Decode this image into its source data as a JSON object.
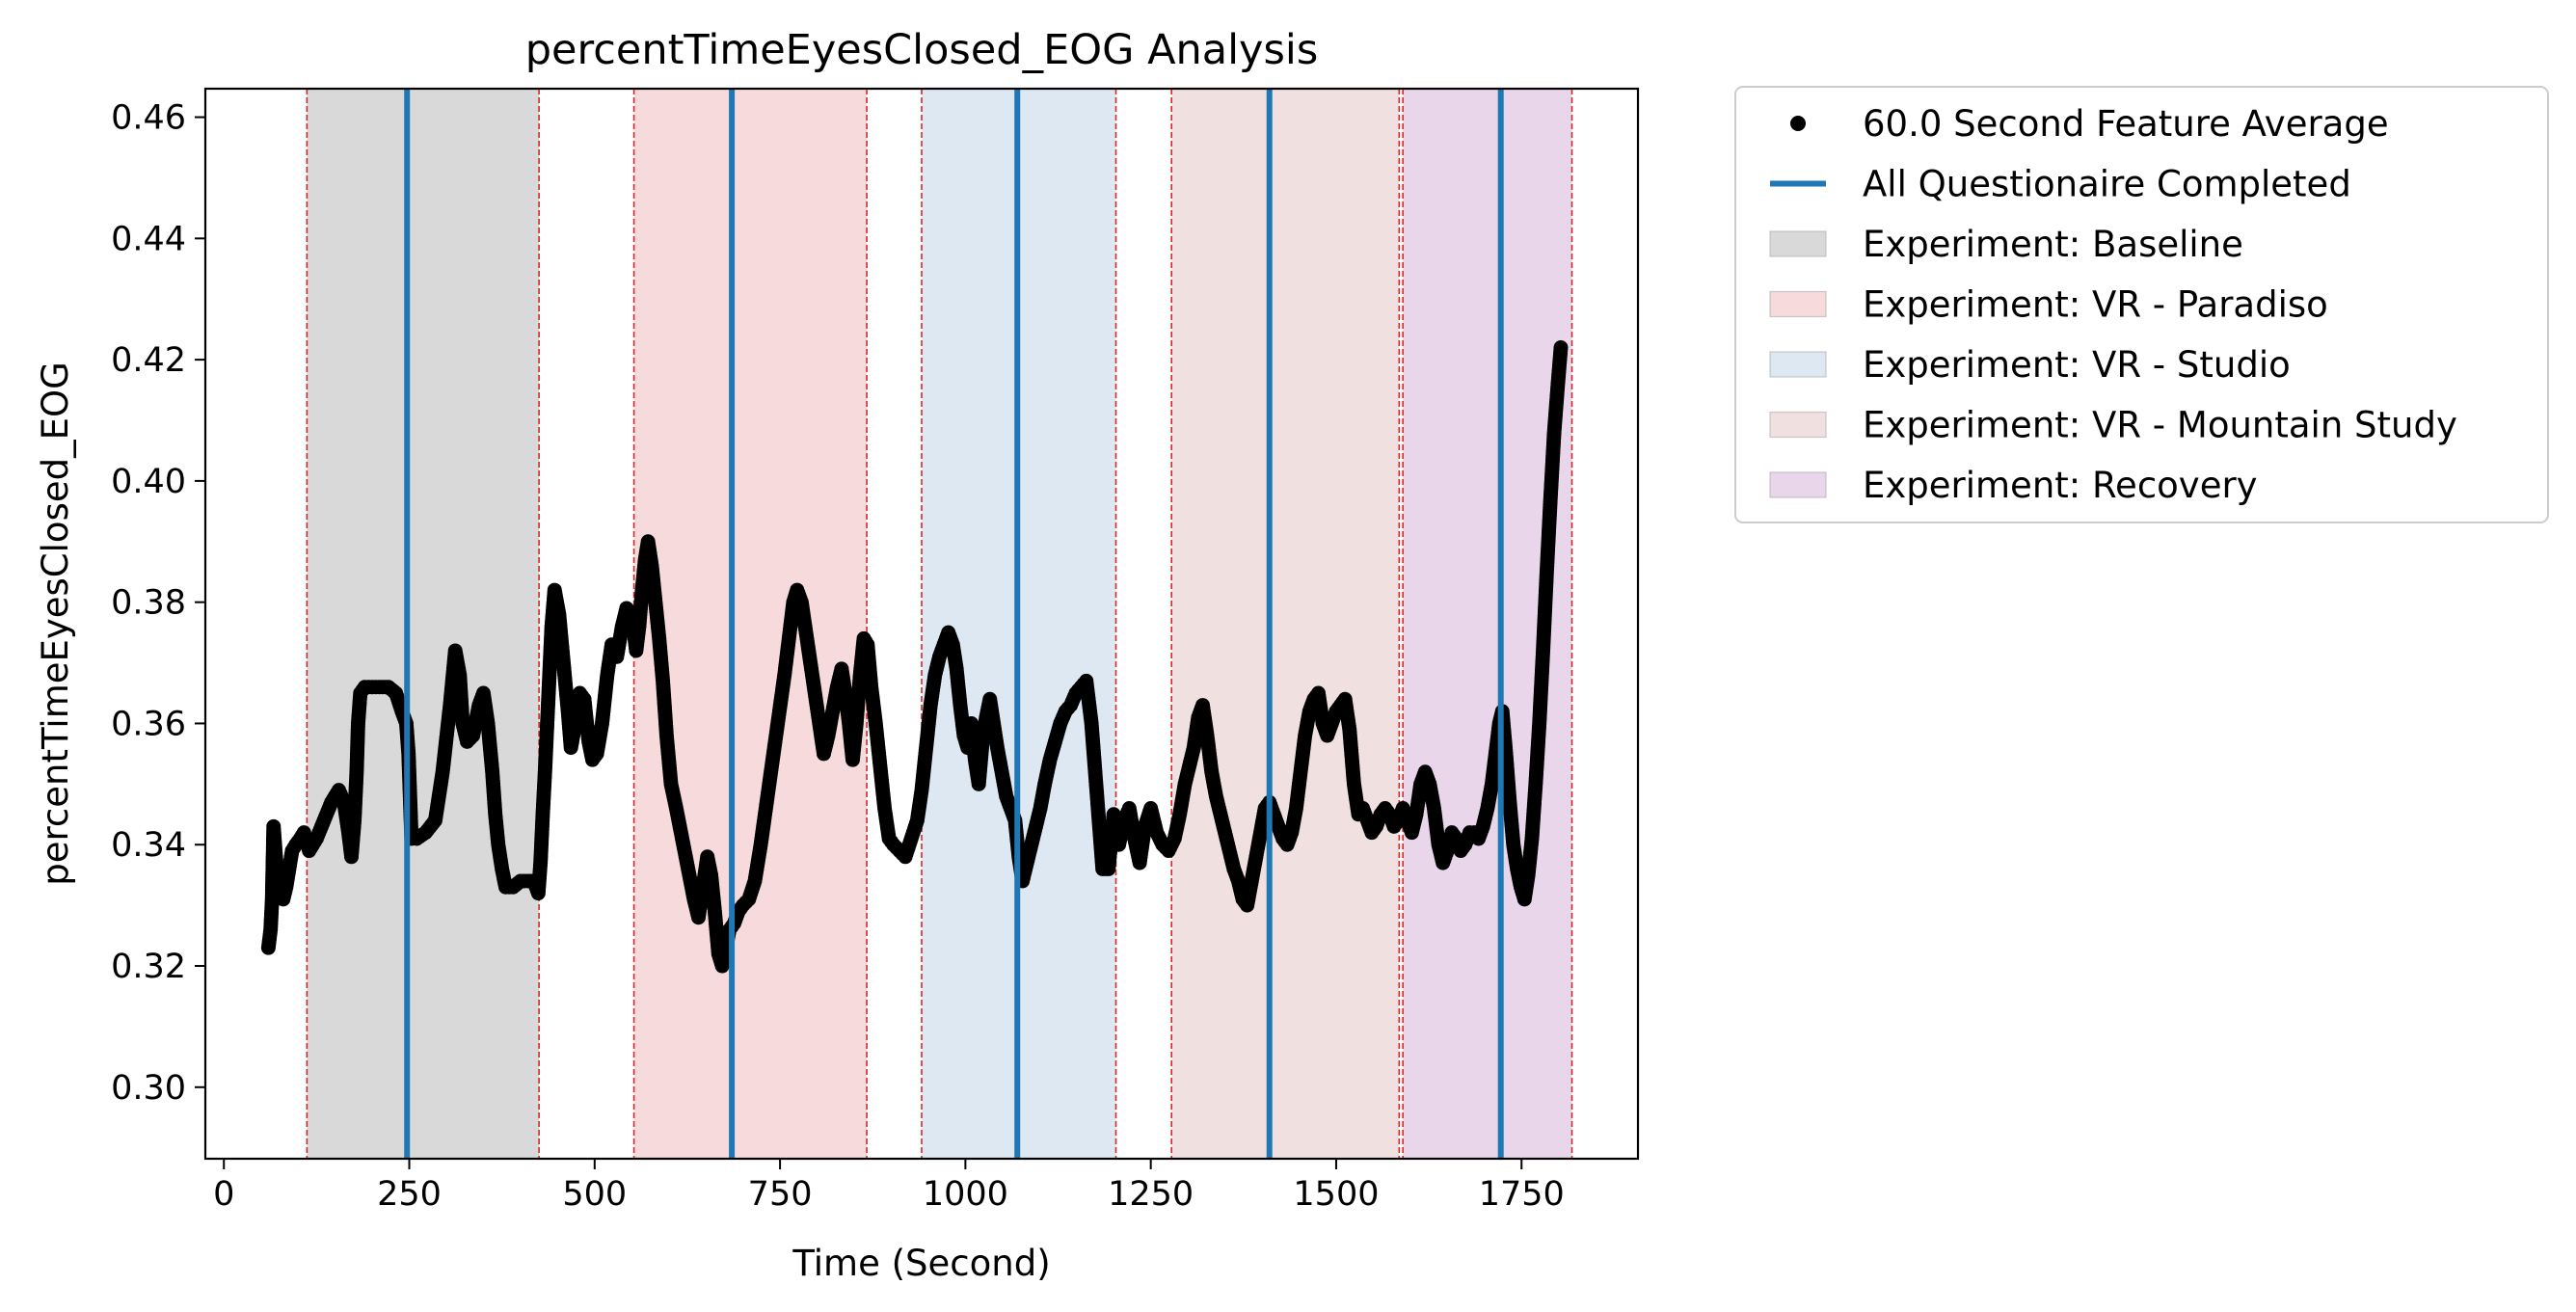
{
  "chart_data": {
    "type": "scatter",
    "title": "percentTimeEyesClosed_EOG Analysis",
    "xlabel": "Time (Second)",
    "ylabel": "percentTimeEyesClosed_EOG",
    "xlim": [
      -25,
      1907
    ],
    "ylim": [
      0.2882,
      0.4647
    ],
    "x_ticks": [
      0,
      250,
      500,
      750,
      1000,
      1250,
      1500,
      1750
    ],
    "y_ticks": [
      0.3,
      0.32,
      0.34,
      0.36,
      0.38,
      0.4,
      0.42,
      0.44,
      0.46
    ],
    "x_tick_labels": [
      "0",
      "250",
      "500",
      "750",
      "1000",
      "1250",
      "1500",
      "1750"
    ],
    "y_tick_labels": [
      "0.30",
      "0.32",
      "0.34",
      "0.36",
      "0.38",
      "0.40",
      "0.42",
      "0.44",
      "0.46"
    ],
    "grid": false,
    "legend_placement": "outside upper-right",
    "series_name": "60.0 Second Feature Average",
    "series_color": "#000000",
    "marker": "circle",
    "points": [
      [
        60,
        0.323
      ],
      [
        63,
        0.326
      ],
      [
        65,
        0.331
      ],
      [
        66,
        0.337
      ],
      [
        67,
        0.343
      ],
      [
        70,
        0.338
      ],
      [
        73,
        0.334
      ],
      [
        77,
        0.332
      ],
      [
        80,
        0.331
      ],
      [
        84,
        0.333
      ],
      [
        88,
        0.336
      ],
      [
        92,
        0.339
      ],
      [
        97,
        0.34
      ],
      [
        103,
        0.341
      ],
      [
        108,
        0.342
      ],
      [
        115,
        0.339
      ],
      [
        125,
        0.341
      ],
      [
        135,
        0.344
      ],
      [
        145,
        0.347
      ],
      [
        155,
        0.349
      ],
      [
        162,
        0.347
      ],
      [
        168,
        0.342
      ],
      [
        172,
        0.338
      ],
      [
        176,
        0.344
      ],
      [
        179,
        0.352
      ],
      [
        181,
        0.36
      ],
      [
        184,
        0.365
      ],
      [
        190,
        0.366
      ],
      [
        200,
        0.366
      ],
      [
        210,
        0.366
      ],
      [
        222,
        0.366
      ],
      [
        232,
        0.365
      ],
      [
        240,
        0.362
      ],
      [
        246,
        0.36
      ],
      [
        249,
        0.355
      ],
      [
        251,
        0.348
      ],
      [
        253,
        0.341
      ],
      [
        260,
        0.341
      ],
      [
        272,
        0.342
      ],
      [
        285,
        0.344
      ],
      [
        295,
        0.352
      ],
      [
        305,
        0.363
      ],
      [
        312,
        0.372
      ],
      [
        318,
        0.368
      ],
      [
        322,
        0.36
      ],
      [
        328,
        0.357
      ],
      [
        336,
        0.358
      ],
      [
        344,
        0.363
      ],
      [
        350,
        0.365
      ],
      [
        356,
        0.36
      ],
      [
        362,
        0.352
      ],
      [
        366,
        0.345
      ],
      [
        370,
        0.34
      ],
      [
        375,
        0.336
      ],
      [
        380,
        0.333
      ],
      [
        390,
        0.333
      ],
      [
        400,
        0.334
      ],
      [
        410,
        0.334
      ],
      [
        418,
        0.334
      ],
      [
        424,
        0.332
      ],
      [
        427,
        0.337
      ],
      [
        430,
        0.345
      ],
      [
        433,
        0.352
      ],
      [
        436,
        0.36
      ],
      [
        439,
        0.368
      ],
      [
        442,
        0.376
      ],
      [
        446,
        0.382
      ],
      [
        452,
        0.378
      ],
      [
        458,
        0.37
      ],
      [
        464,
        0.362
      ],
      [
        468,
        0.356
      ],
      [
        474,
        0.36
      ],
      [
        480,
        0.365
      ],
      [
        486,
        0.364
      ],
      [
        492,
        0.357
      ],
      [
        497,
        0.354
      ],
      [
        503,
        0.355
      ],
      [
        510,
        0.36
      ],
      [
        517,
        0.368
      ],
      [
        523,
        0.373
      ],
      [
        530,
        0.371
      ],
      [
        537,
        0.376
      ],
      [
        543,
        0.379
      ],
      [
        550,
        0.378
      ],
      [
        556,
        0.372
      ],
      [
        560,
        0.376
      ],
      [
        564,
        0.382
      ],
      [
        568,
        0.387
      ],
      [
        572,
        0.39
      ],
      [
        577,
        0.386
      ],
      [
        582,
        0.38
      ],
      [
        587,
        0.374
      ],
      [
        592,
        0.367
      ],
      [
        597,
        0.358
      ],
      [
        603,
        0.35
      ],
      [
        610,
        0.346
      ],
      [
        618,
        0.341
      ],
      [
        626,
        0.336
      ],
      [
        634,
        0.331
      ],
      [
        640,
        0.328
      ],
      [
        646,
        0.333
      ],
      [
        652,
        0.338
      ],
      [
        657,
        0.335
      ],
      [
        662,
        0.329
      ],
      [
        667,
        0.322
      ],
      [
        672,
        0.32
      ],
      [
        677,
        0.323
      ],
      [
        682,
        0.326
      ],
      [
        688,
        0.327
      ],
      [
        694,
        0.329
      ],
      [
        700,
        0.33
      ],
      [
        708,
        0.331
      ],
      [
        716,
        0.334
      ],
      [
        724,
        0.34
      ],
      [
        732,
        0.347
      ],
      [
        740,
        0.354
      ],
      [
        748,
        0.361
      ],
      [
        756,
        0.368
      ],
      [
        762,
        0.374
      ],
      [
        768,
        0.38
      ],
      [
        773,
        0.382
      ],
      [
        779,
        0.38
      ],
      [
        785,
        0.375
      ],
      [
        791,
        0.37
      ],
      [
        797,
        0.365
      ],
      [
        803,
        0.36
      ],
      [
        809,
        0.355
      ],
      [
        815,
        0.358
      ],
      [
        821,
        0.362
      ],
      [
        827,
        0.366
      ],
      [
        833,
        0.369
      ],
      [
        838,
        0.365
      ],
      [
        843,
        0.36
      ],
      [
        848,
        0.354
      ],
      [
        853,
        0.36
      ],
      [
        858,
        0.368
      ],
      [
        863,
        0.374
      ],
      [
        868,
        0.373
      ],
      [
        873,
        0.366
      ],
      [
        879,
        0.36
      ],
      [
        885,
        0.353
      ],
      [
        891,
        0.346
      ],
      [
        897,
        0.341
      ],
      [
        903,
        0.34
      ],
      [
        911,
        0.339
      ],
      [
        919,
        0.338
      ],
      [
        927,
        0.341
      ],
      [
        935,
        0.344
      ],
      [
        941,
        0.349
      ],
      [
        947,
        0.356
      ],
      [
        953,
        0.363
      ],
      [
        959,
        0.368
      ],
      [
        965,
        0.371
      ],
      [
        971,
        0.373
      ],
      [
        977,
        0.375
      ],
      [
        983,
        0.373
      ],
      [
        988,
        0.369
      ],
      [
        993,
        0.363
      ],
      [
        998,
        0.358
      ],
      [
        1003,
        0.356
      ],
      [
        1008,
        0.36
      ],
      [
        1013,
        0.354
      ],
      [
        1018,
        0.35
      ],
      [
        1023,
        0.357
      ],
      [
        1028,
        0.361
      ],
      [
        1033,
        0.364
      ],
      [
        1038,
        0.36
      ],
      [
        1043,
        0.356
      ],
      [
        1049,
        0.352
      ],
      [
        1055,
        0.348
      ],
      [
        1061,
        0.346
      ],
      [
        1067,
        0.344
      ],
      [
        1072,
        0.338
      ],
      [
        1077,
        0.334
      ],
      [
        1083,
        0.337
      ],
      [
        1089,
        0.34
      ],
      [
        1095,
        0.343
      ],
      [
        1101,
        0.346
      ],
      [
        1107,
        0.35
      ],
      [
        1114,
        0.354
      ],
      [
        1121,
        0.357
      ],
      [
        1128,
        0.36
      ],
      [
        1135,
        0.362
      ],
      [
        1142,
        0.363
      ],
      [
        1149,
        0.365
      ],
      [
        1156,
        0.366
      ],
      [
        1163,
        0.367
      ],
      [
        1170,
        0.36
      ],
      [
        1175,
        0.352
      ],
      [
        1180,
        0.344
      ],
      [
        1185,
        0.336
      ],
      [
        1193,
        0.336
      ],
      [
        1200,
        0.345
      ],
      [
        1207,
        0.34
      ],
      [
        1214,
        0.344
      ],
      [
        1221,
        0.346
      ],
      [
        1228,
        0.341
      ],
      [
        1235,
        0.337
      ],
      [
        1242,
        0.343
      ],
      [
        1250,
        0.346
      ],
      [
        1258,
        0.342
      ],
      [
        1266,
        0.34
      ],
      [
        1274,
        0.339
      ],
      [
        1282,
        0.341
      ],
      [
        1289,
        0.345
      ],
      [
        1296,
        0.35
      ],
      [
        1302,
        0.353
      ],
      [
        1308,
        0.356
      ],
      [
        1314,
        0.361
      ],
      [
        1320,
        0.363
      ],
      [
        1326,
        0.358
      ],
      [
        1332,
        0.352
      ],
      [
        1338,
        0.348
      ],
      [
        1344,
        0.345
      ],
      [
        1350,
        0.342
      ],
      [
        1356,
        0.339
      ],
      [
        1362,
        0.336
      ],
      [
        1368,
        0.334
      ],
      [
        1374,
        0.331
      ],
      [
        1380,
        0.33
      ],
      [
        1386,
        0.334
      ],
      [
        1392,
        0.338
      ],
      [
        1398,
        0.342
      ],
      [
        1404,
        0.346
      ],
      [
        1410,
        0.347
      ],
      [
        1416,
        0.345
      ],
      [
        1422,
        0.343
      ],
      [
        1428,
        0.341
      ],
      [
        1434,
        0.34
      ],
      [
        1440,
        0.342
      ],
      [
        1446,
        0.346
      ],
      [
        1452,
        0.352
      ],
      [
        1458,
        0.358
      ],
      [
        1464,
        0.362
      ],
      [
        1470,
        0.364
      ],
      [
        1476,
        0.365
      ],
      [
        1482,
        0.36
      ],
      [
        1488,
        0.358
      ],
      [
        1494,
        0.36
      ],
      [
        1500,
        0.362
      ],
      [
        1506,
        0.363
      ],
      [
        1512,
        0.364
      ],
      [
        1518,
        0.359
      ],
      [
        1524,
        0.35
      ],
      [
        1530,
        0.345
      ],
      [
        1536,
        0.346
      ],
      [
        1542,
        0.344
      ],
      [
        1548,
        0.342
      ],
      [
        1554,
        0.343
      ],
      [
        1560,
        0.345
      ],
      [
        1566,
        0.346
      ],
      [
        1572,
        0.345
      ],
      [
        1578,
        0.343
      ],
      [
        1584,
        0.344
      ],
      [
        1590,
        0.346
      ],
      [
        1596,
        0.344
      ],
      [
        1602,
        0.342
      ],
      [
        1608,
        0.345
      ],
      [
        1614,
        0.35
      ],
      [
        1620,
        0.352
      ],
      [
        1626,
        0.35
      ],
      [
        1632,
        0.346
      ],
      [
        1638,
        0.34
      ],
      [
        1644,
        0.337
      ],
      [
        1650,
        0.339
      ],
      [
        1656,
        0.342
      ],
      [
        1662,
        0.341
      ],
      [
        1668,
        0.339
      ],
      [
        1674,
        0.34
      ],
      [
        1680,
        0.342
      ],
      [
        1686,
        0.342
      ],
      [
        1692,
        0.341
      ],
      [
        1698,
        0.343
      ],
      [
        1704,
        0.346
      ],
      [
        1710,
        0.35
      ],
      [
        1715,
        0.355
      ],
      [
        1720,
        0.36
      ],
      [
        1724,
        0.362
      ],
      [
        1729,
        0.355
      ],
      [
        1734,
        0.347
      ],
      [
        1739,
        0.34
      ],
      [
        1744,
        0.336
      ],
      [
        1749,
        0.333
      ],
      [
        1754,
        0.331
      ],
      [
        1759,
        0.335
      ],
      [
        1764,
        0.341
      ],
      [
        1769,
        0.35
      ],
      [
        1774,
        0.36
      ],
      [
        1779,
        0.372
      ],
      [
        1784,
        0.385
      ],
      [
        1789,
        0.397
      ],
      [
        1794,
        0.408
      ],
      [
        1799,
        0.416
      ],
      [
        1803,
        0.422
      ]
    ],
    "questionnaire_completed": {
      "name": "All Questionaire Completed",
      "color": "#1f77b4",
      "x": [
        247,
        685,
        1070,
        1410,
        1722
      ]
    },
    "experiment_bands": [
      {
        "name": "Experiment: Baseline",
        "start": 112,
        "end": 425,
        "color": "#d9d9d9"
      },
      {
        "name": "Experiment: VR - Paradiso",
        "start": 553,
        "end": 867,
        "color": "#f7dadb"
      },
      {
        "name": "Experiment: VR - Studio",
        "start": 941,
        "end": 1203,
        "color": "#dde8f2"
      },
      {
        "name": "Experiment: VR - Mountain Study",
        "start": 1278,
        "end": 1585,
        "color": "#f0e0e0"
      },
      {
        "name": "Experiment: Recovery",
        "start": 1590,
        "end": 1818,
        "color": "#e9d6ea"
      }
    ],
    "band_edges_color": "#d62728",
    "legend": [
      {
        "label": "60.0 Second Feature Average",
        "kind": "marker",
        "color": "#000000"
      },
      {
        "label": "All Questionaire Completed",
        "kind": "line",
        "color": "#1f77b4"
      },
      {
        "label": "Experiment: Baseline",
        "kind": "patch",
        "color": "#d9d9d9"
      },
      {
        "label": "Experiment: VR - Paradiso",
        "kind": "patch",
        "color": "#f7dadb"
      },
      {
        "label": "Experiment: VR - Studio",
        "kind": "patch",
        "color": "#dde8f2"
      },
      {
        "label": "Experiment: VR - Mountain Study",
        "kind": "patch",
        "color": "#f0e0e0"
      },
      {
        "label": "Experiment: Recovery",
        "kind": "patch",
        "color": "#e9d6ea"
      }
    ]
  }
}
